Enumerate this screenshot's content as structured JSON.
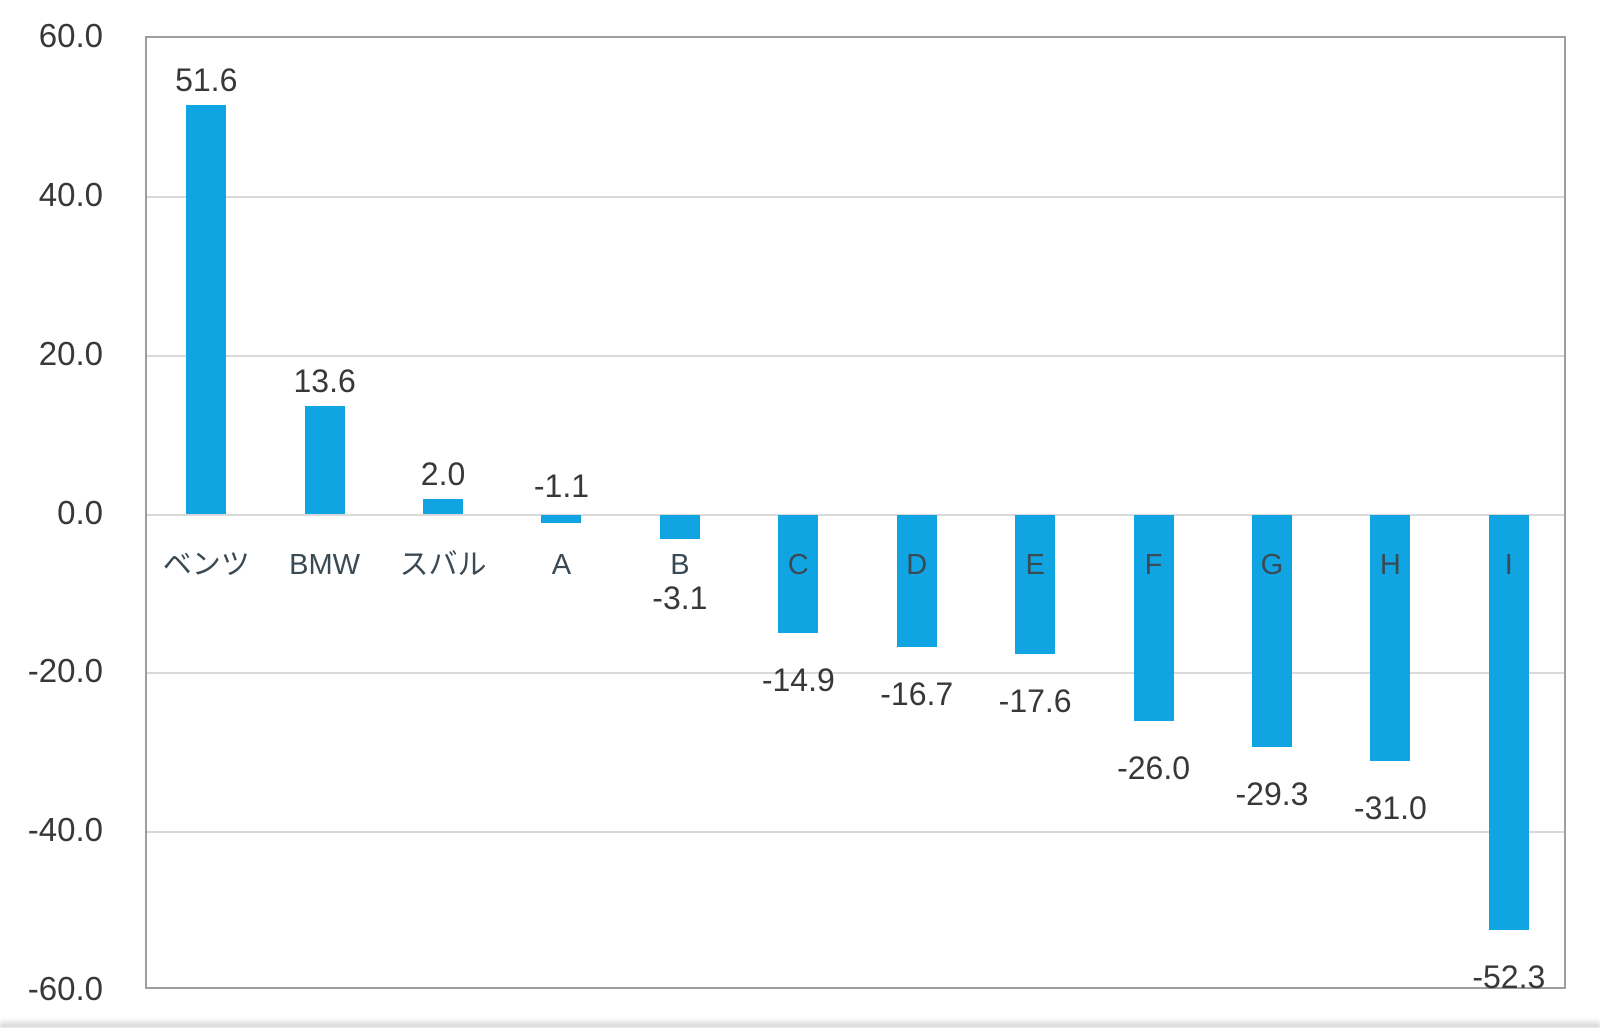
{
  "chart_data": {
    "type": "bar",
    "title": "",
    "xlabel": "",
    "ylabel": "",
    "categories": [
      "ベンツ",
      "BMW",
      "スバル",
      "A",
      "B",
      "C",
      "D",
      "E",
      "F",
      "G",
      "H",
      "I"
    ],
    "values": [
      51.6,
      13.6,
      2.0,
      -1.1,
      -3.1,
      -14.9,
      -16.7,
      -17.6,
      -26.0,
      -29.3,
      -31.0,
      -52.3
    ],
    "data_labels": [
      "51.6",
      "13.6",
      "2.0",
      "-1.1",
      "-3.1",
      "-14.9",
      "-16.7",
      "-17.6",
      "-26.0",
      "-29.3",
      "-31.0",
      "-52.3"
    ],
    "ylim": [
      -60,
      60
    ],
    "ytick_interval": 20,
    "ytick_labels": [
      "60.0",
      "40.0",
      "20.0",
      "0.0",
      "-20.0",
      "-40.0",
      "-60.0"
    ],
    "grid": true,
    "legend": false,
    "bar_color": "#10a4e3",
    "gridline_color": "#d9d9d9",
    "border_color": "#9e9e9e",
    "text_color": "#383838"
  }
}
